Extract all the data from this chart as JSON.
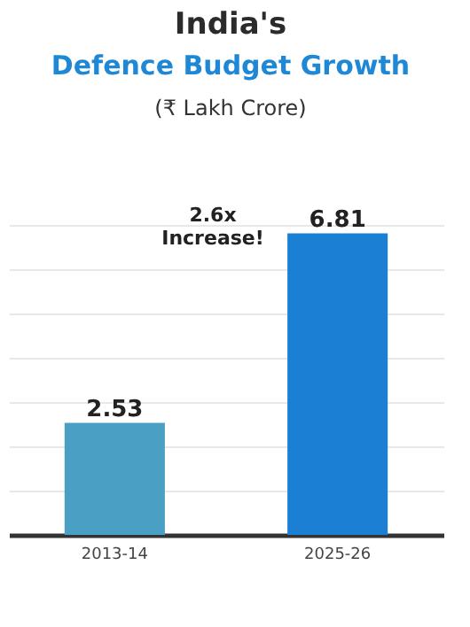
{
  "chart_data": {
    "type": "bar",
    "title": "India's Defence Budget Growth",
    "subtitle": "(₹ Lakh Crore)",
    "categories": [
      "2013-14",
      "2025-26"
    ],
    "values": [
      2.53,
      6.81
    ],
    "colors": [
      "#4a9fc4",
      "#1b7fd4"
    ],
    "grid": "y",
    "data_labels": true,
    "annotations": [
      "2.6x Increase!"
    ]
  }
}
